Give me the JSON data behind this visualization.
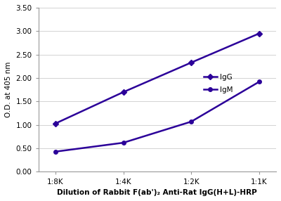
{
  "x_labels": [
    "1:8K",
    "1:4K",
    "1:2K",
    "1:1K"
  ],
  "x_values": [
    0,
    1,
    2,
    3
  ],
  "IgG_values": [
    1.03,
    1.7,
    2.33,
    2.95
  ],
  "IgM_values": [
    0.43,
    0.62,
    1.07,
    1.92
  ],
  "line_color": "#2B0099",
  "IgG_marker": "D",
  "IgM_marker": "o",
  "IgG_marker_size": 4,
  "IgM_marker_size": 4,
  "ylabel": "O.D. at 405 nm",
  "xlabel": "Dilution of Rabbit F(ab')₂ Anti-Rat IgG(H+L)-HRP",
  "ylim": [
    0.0,
    3.5
  ],
  "yticks": [
    0.0,
    0.5,
    1.0,
    1.5,
    2.0,
    2.5,
    3.0,
    3.5
  ],
  "legend_labels": [
    "IgG",
    "IgM"
  ],
  "axis_fontsize": 7.5,
  "tick_fontsize": 7.5,
  "legend_fontsize": 7.5,
  "background_color": "#ffffff",
  "line_width": 1.8,
  "grid_color": "#cccccc",
  "spine_color": "#999999"
}
